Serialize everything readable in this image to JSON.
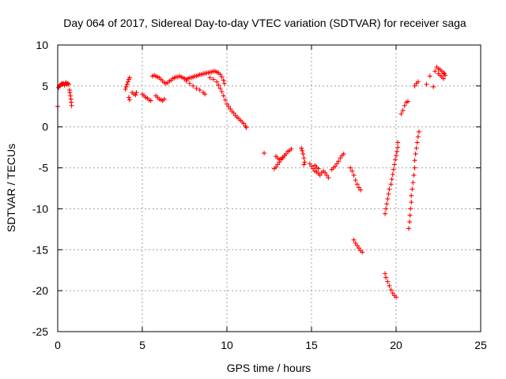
{
  "chart_data": {
    "type": "scatter",
    "title": "Day 064 of 2017, Sidereal Day-to-day VTEC variation (SDTVAR) for receiver saga",
    "xlabel": "GPS time / hours",
    "ylabel": "SDTVAR / TECUs",
    "xlim": [
      0,
      25
    ],
    "ylim": [
      -25,
      10
    ],
    "xticks": [
      0,
      5,
      10,
      15,
      20,
      25
    ],
    "yticks": [
      -25,
      -20,
      -15,
      -10,
      -5,
      0,
      5,
      10
    ],
    "grid": true,
    "marker": "+",
    "color": "#ff0000",
    "series": [
      {
        "name": "SDTVAR",
        "points": [
          [
            0.0,
            2.5
          ],
          [
            0.05,
            4.8
          ],
          [
            0.1,
            5.0
          ],
          [
            0.15,
            5.1
          ],
          [
            0.2,
            5.2
          ],
          [
            0.25,
            5.3
          ],
          [
            0.3,
            5.2
          ],
          [
            0.35,
            5.3
          ],
          [
            0.4,
            5.1
          ],
          [
            0.45,
            5.3
          ],
          [
            0.5,
            5.4
          ],
          [
            0.55,
            5.2
          ],
          [
            0.6,
            5.3
          ],
          [
            0.65,
            5.2
          ],
          [
            0.7,
            4.5
          ],
          [
            0.72,
            4.2
          ],
          [
            0.75,
            3.8
          ],
          [
            0.78,
            3.4
          ],
          [
            0.8,
            3.0
          ],
          [
            0.82,
            2.6
          ],
          [
            4.0,
            4.6
          ],
          [
            4.05,
            4.9
          ],
          [
            4.1,
            5.2
          ],
          [
            4.15,
            5.5
          ],
          [
            4.2,
            5.8
          ],
          [
            4.25,
            6.0
          ],
          [
            4.2,
            3.6
          ],
          [
            4.25,
            3.3
          ],
          [
            4.4,
            4.2
          ],
          [
            4.5,
            4.0
          ],
          [
            4.6,
            3.9
          ],
          [
            4.65,
            4.2
          ],
          [
            5.0,
            4.0
          ],
          [
            5.1,
            3.8
          ],
          [
            5.2,
            3.6
          ],
          [
            5.3,
            3.5
          ],
          [
            5.4,
            3.3
          ],
          [
            5.5,
            3.2
          ],
          [
            5.6,
            6.2
          ],
          [
            5.7,
            6.3
          ],
          [
            5.8,
            6.2
          ],
          [
            5.9,
            6.1
          ],
          [
            6.0,
            6.0
          ],
          [
            6.1,
            5.8
          ],
          [
            6.2,
            5.6
          ],
          [
            6.3,
            5.4
          ],
          [
            5.8,
            3.8
          ],
          [
            5.9,
            3.6
          ],
          [
            6.0,
            3.4
          ],
          [
            6.1,
            3.3
          ],
          [
            6.2,
            3.2
          ],
          [
            6.3,
            3.4
          ],
          [
            6.4,
            5.3
          ],
          [
            6.5,
            5.4
          ],
          [
            6.6,
            5.6
          ],
          [
            6.7,
            5.7
          ],
          [
            6.8,
            5.9
          ],
          [
            6.9,
            6.0
          ],
          [
            7.0,
            6.1
          ],
          [
            7.1,
            6.1
          ],
          [
            7.2,
            6.2
          ],
          [
            7.3,
            6.1
          ],
          [
            7.4,
            6.0
          ],
          [
            7.5,
            5.9
          ],
          [
            7.6,
            5.8
          ],
          [
            7.7,
            5.9
          ],
          [
            7.8,
            6.0
          ],
          [
            7.9,
            6.0
          ],
          [
            8.0,
            6.1
          ],
          [
            8.1,
            6.2
          ],
          [
            8.2,
            6.2
          ],
          [
            8.3,
            6.3
          ],
          [
            8.4,
            6.4
          ],
          [
            8.5,
            6.4
          ],
          [
            8.6,
            6.5
          ],
          [
            8.7,
            6.5
          ],
          [
            8.8,
            6.6
          ],
          [
            8.9,
            6.6
          ],
          [
            9.0,
            6.7
          ],
          [
            9.1,
            6.7
          ],
          [
            9.2,
            6.8
          ],
          [
            9.3,
            6.8
          ],
          [
            9.4,
            6.7
          ],
          [
            9.5,
            6.6
          ],
          [
            9.6,
            6.4
          ],
          [
            9.7,
            6.1
          ],
          [
            9.8,
            5.7
          ],
          [
            9.85,
            5.3
          ],
          [
            7.6,
            5.6
          ],
          [
            7.8,
            5.3
          ],
          [
            8.0,
            5.0
          ],
          [
            8.2,
            4.7
          ],
          [
            8.4,
            4.5
          ],
          [
            8.6,
            4.2
          ],
          [
            8.7,
            4.0
          ],
          [
            9.0,
            6.0
          ],
          [
            9.2,
            5.8
          ],
          [
            9.4,
            5.5
          ],
          [
            9.5,
            5.1
          ],
          [
            9.6,
            4.7
          ],
          [
            9.7,
            4.3
          ],
          [
            9.8,
            3.8
          ],
          [
            9.9,
            3.3
          ],
          [
            10.0,
            2.8
          ],
          [
            10.1,
            2.5
          ],
          [
            10.2,
            2.2
          ],
          [
            10.3,
            1.9
          ],
          [
            10.4,
            1.7
          ],
          [
            10.5,
            1.4
          ],
          [
            10.6,
            1.2
          ],
          [
            10.7,
            1.0
          ],
          [
            10.8,
            0.8
          ],
          [
            10.9,
            0.6
          ],
          [
            11.0,
            0.4
          ],
          [
            11.1,
            0.1
          ],
          [
            11.15,
            -0.1
          ],
          [
            12.2,
            -3.2
          ],
          [
            12.8,
            -5.1
          ],
          [
            12.9,
            -4.9
          ],
          [
            13.0,
            -4.6
          ],
          [
            13.1,
            -4.3
          ],
          [
            13.2,
            -4.0
          ],
          [
            13.3,
            -3.8
          ],
          [
            13.4,
            -3.5
          ],
          [
            13.5,
            -3.3
          ],
          [
            13.6,
            -3.0
          ],
          [
            13.7,
            -2.9
          ],
          [
            13.8,
            -2.7
          ],
          [
            12.9,
            -3.6
          ],
          [
            13.0,
            -3.8
          ],
          [
            13.1,
            -4.0
          ],
          [
            13.2,
            -3.9
          ],
          [
            13.3,
            -3.7
          ],
          [
            13.4,
            -3.5
          ],
          [
            14.4,
            -2.6
          ],
          [
            14.45,
            -2.9
          ],
          [
            14.5,
            -3.3
          ],
          [
            14.55,
            -3.8
          ],
          [
            14.6,
            -4.3
          ],
          [
            14.55,
            -4.6
          ],
          [
            14.9,
            -4.5
          ],
          [
            15.0,
            -4.8
          ],
          [
            15.1,
            -5.1
          ],
          [
            15.2,
            -5.4
          ],
          [
            15.3,
            -5.5
          ],
          [
            15.4,
            -5.7
          ],
          [
            15.5,
            -5.9
          ],
          [
            15.6,
            -5.6
          ],
          [
            15.7,
            -5.4
          ],
          [
            15.8,
            -5.6
          ],
          [
            15.9,
            -5.9
          ],
          [
            16.0,
            -6.2
          ],
          [
            15.2,
            -4.7
          ],
          [
            15.3,
            -4.9
          ],
          [
            15.4,
            -5.1
          ],
          [
            16.2,
            -5.2
          ],
          [
            16.3,
            -5.0
          ],
          [
            16.4,
            -4.8
          ],
          [
            16.5,
            -4.5
          ],
          [
            16.6,
            -4.2
          ],
          [
            16.7,
            -3.8
          ],
          [
            16.8,
            -3.5
          ],
          [
            16.9,
            -3.3
          ],
          [
            17.3,
            -5.0
          ],
          [
            17.4,
            -5.4
          ],
          [
            17.5,
            -5.9
          ],
          [
            17.6,
            -6.5
          ],
          [
            17.7,
            -7.0
          ],
          [
            17.8,
            -7.4
          ],
          [
            17.9,
            -7.7
          ],
          [
            17.5,
            -13.8
          ],
          [
            17.6,
            -14.2
          ],
          [
            17.7,
            -14.5
          ],
          [
            17.8,
            -14.8
          ],
          [
            17.9,
            -15.1
          ],
          [
            18.0,
            -15.3
          ],
          [
            19.35,
            -17.9
          ],
          [
            19.4,
            -18.4
          ],
          [
            19.5,
            -18.9
          ],
          [
            19.6,
            -19.4
          ],
          [
            19.7,
            -19.9
          ],
          [
            19.8,
            -20.3
          ],
          [
            19.9,
            -20.6
          ],
          [
            20.0,
            -20.8
          ],
          [
            19.35,
            -10.6
          ],
          [
            19.4,
            -10.0
          ],
          [
            19.45,
            -9.4
          ],
          [
            19.5,
            -8.8
          ],
          [
            19.55,
            -8.2
          ],
          [
            19.6,
            -7.6
          ],
          [
            19.7,
            -7.0
          ],
          [
            19.75,
            -6.4
          ],
          [
            19.8,
            -5.8
          ],
          [
            19.85,
            -5.2
          ],
          [
            19.9,
            -4.6
          ],
          [
            19.95,
            -4.0
          ],
          [
            20.0,
            -3.5
          ],
          [
            20.05,
            -3.0
          ],
          [
            20.1,
            -2.5
          ],
          [
            20.1,
            -1.9
          ],
          [
            20.3,
            1.6
          ],
          [
            20.4,
            2.0
          ],
          [
            20.5,
            2.6
          ],
          [
            20.6,
            3.0
          ],
          [
            20.7,
            3.1
          ],
          [
            20.75,
            -12.4
          ],
          [
            20.8,
            -11.6
          ],
          [
            20.82,
            -10.8
          ],
          [
            20.85,
            -10.0
          ],
          [
            20.9,
            -9.2
          ],
          [
            20.9,
            -8.4
          ],
          [
            20.95,
            -7.6
          ],
          [
            21.0,
            -6.8
          ],
          [
            21.05,
            -5.9
          ],
          [
            21.1,
            -5.0
          ],
          [
            21.1,
            -4.1
          ],
          [
            21.15,
            -3.3
          ],
          [
            21.2,
            -2.6
          ],
          [
            21.25,
            -1.9
          ],
          [
            21.3,
            -1.2
          ],
          [
            21.35,
            -0.6
          ],
          [
            21.1,
            5.0
          ],
          [
            21.2,
            5.3
          ],
          [
            21.3,
            5.5
          ],
          [
            21.8,
            5.2
          ],
          [
            22.0,
            6.2
          ],
          [
            22.2,
            4.9
          ],
          [
            22.3,
            6.8
          ],
          [
            22.4,
            7.3
          ],
          [
            22.5,
            7.1
          ],
          [
            22.6,
            7.0
          ],
          [
            22.7,
            6.8
          ],
          [
            22.8,
            6.6
          ],
          [
            22.85,
            6.5
          ],
          [
            22.9,
            6.3
          ],
          [
            22.5,
            6.5
          ],
          [
            22.6,
            6.3
          ],
          [
            22.7,
            6.1
          ],
          [
            22.8,
            5.9
          ]
        ]
      }
    ]
  }
}
